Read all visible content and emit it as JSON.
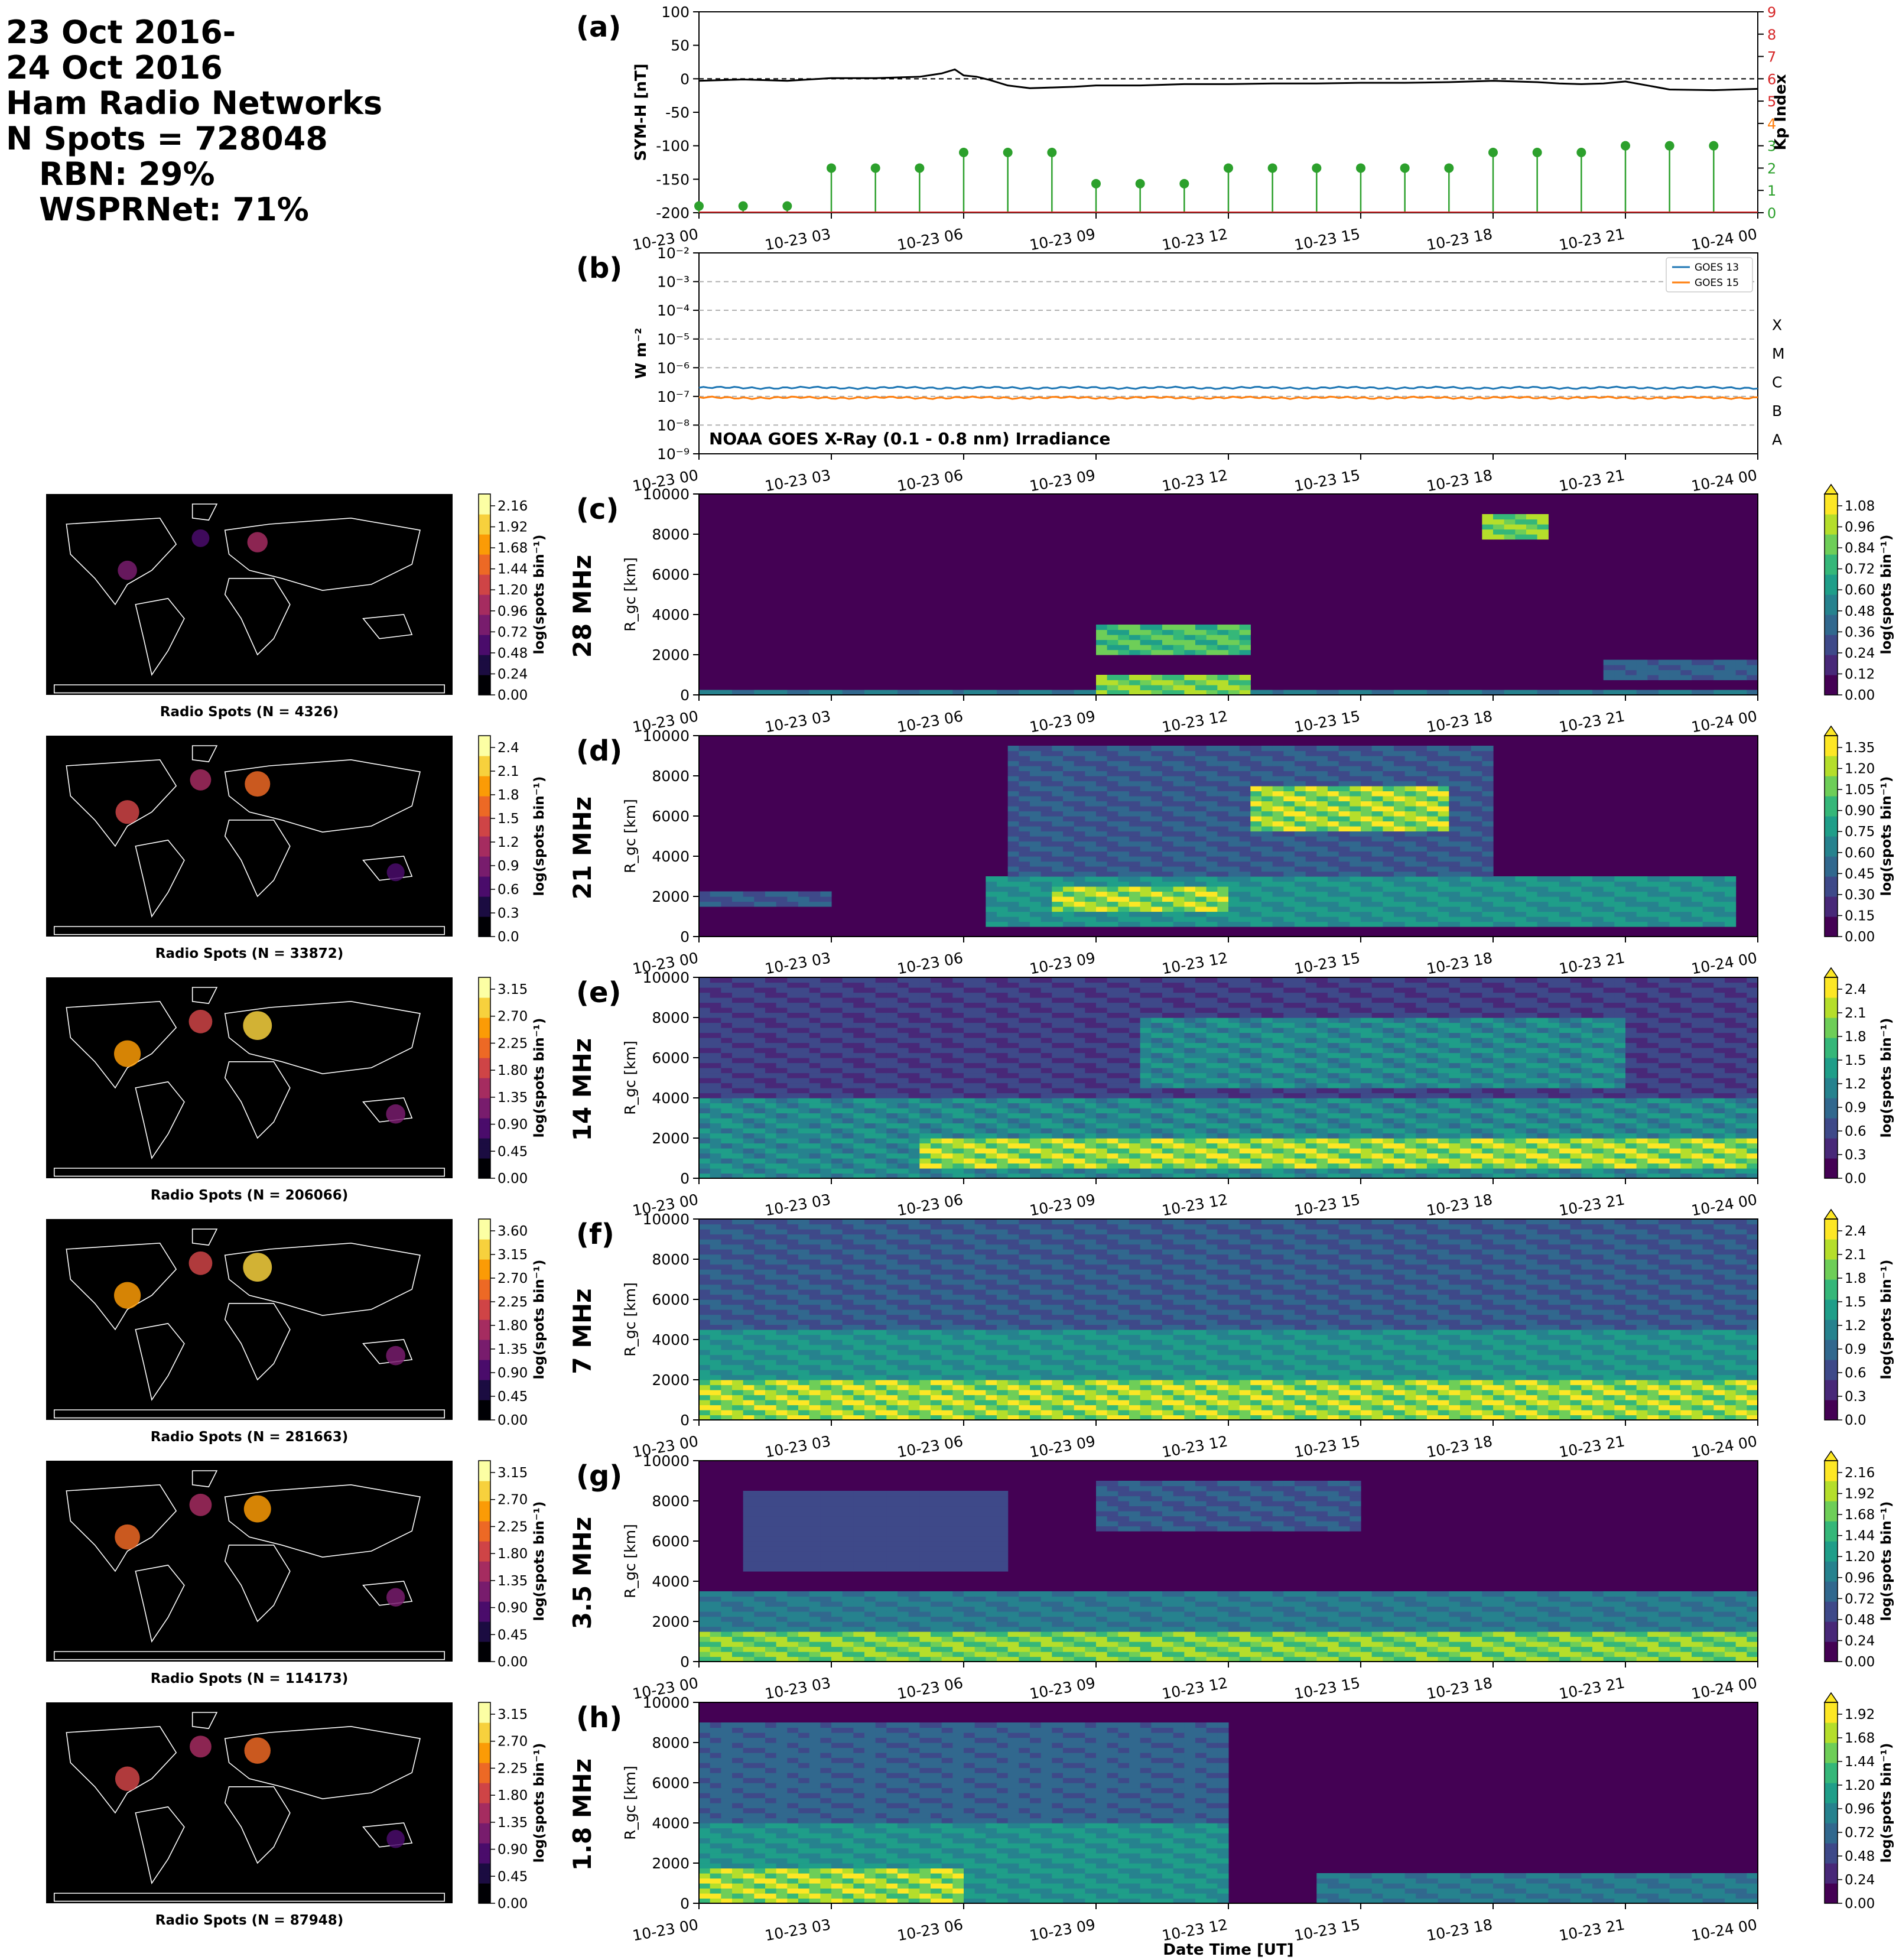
{
  "header": {
    "line1": "23 Oct 2016-",
    "line2": "24 Oct 2016",
    "line3": "Ham Radio Networks",
    "line4": "N Spots = 728048",
    "line5": "RBN: 29%",
    "line6": "WSPRNet: 71%"
  },
  "time_ticks": [
    "10-23 00",
    "10-23 03",
    "10-23 06",
    "10-23 09",
    "10-23 12",
    "10-23 15",
    "10-23 18",
    "10-23 21",
    "10-24 00"
  ],
  "xlabel_bottom": "Date Time [UT]",
  "colors": {
    "symh_line": "#000000",
    "kp_stem": "#2ca02c",
    "goes13": "#1f77b4",
    "goes15": "#ff7f0e",
    "viridis_low": "#440154",
    "viridis_high": "#fde725"
  },
  "chart_data": [
    {
      "id": "a",
      "panel_label": "(a)",
      "type": "line",
      "ylabel": "SYM-H [nT]",
      "ylabel_right": "Kp Index",
      "ylim": [
        -200,
        100
      ],
      "yticks": [
        100,
        50,
        0,
        -50,
        -100,
        -150,
        -200
      ],
      "ylim_right": [
        0,
        9
      ],
      "yticks_right": [
        9,
        8,
        7,
        6,
        5,
        4,
        3,
        2,
        1,
        0
      ],
      "symh": {
        "x_hours": [
          0,
          1,
          2,
          3,
          4,
          5,
          5.5,
          5.8,
          6.0,
          6.3,
          6.6,
          7,
          7.5,
          8,
          8.5,
          9,
          10,
          11,
          12,
          13,
          14,
          15,
          16,
          17,
          18,
          19,
          19.5,
          20,
          20.5,
          21,
          21.5,
          22,
          23,
          24
        ],
        "y": [
          -3,
          -1,
          -3,
          1,
          1,
          3,
          8,
          14,
          5,
          3,
          -2,
          -10,
          -14,
          -13,
          -12,
          -10,
          -10,
          -8,
          -8,
          -7,
          -7,
          -6,
          -6,
          -5,
          -3,
          -5,
          -7,
          -8,
          -7,
          -4,
          -10,
          -16,
          -17,
          -15
        ]
      },
      "kp": {
        "x_hours": [
          0,
          1,
          2,
          3,
          4,
          5,
          6,
          7,
          8,
          9,
          10,
          11,
          12,
          13,
          14,
          15,
          16,
          17,
          18,
          19,
          20,
          21,
          22,
          23
        ],
        "y": [
          0.3,
          0.3,
          0.3,
          2,
          2,
          2,
          2.7,
          2.7,
          2.7,
          1.3,
          1.3,
          1.3,
          2,
          2,
          2,
          2,
          2,
          2,
          2.7,
          2.7,
          2.7,
          3,
          3,
          3
        ]
      }
    },
    {
      "id": "b",
      "panel_label": "(b)",
      "type": "line",
      "ylabel": "W m⁻²",
      "yscale": "log",
      "ylim": [
        1e-09,
        0.01
      ],
      "ytick_labels": [
        "10⁻²",
        "10⁻³",
        "10⁻⁴",
        "10⁻⁵",
        "10⁻⁶",
        "10⁻⁷",
        "10⁻⁸",
        "10⁻⁹"
      ],
      "flare_classes": [
        "X",
        "M",
        "C",
        "B",
        "A"
      ],
      "annotation": "NOAA GOES X-Ray (0.1 - 0.8 nm) Irradiance",
      "series": [
        {
          "name": "GOES 13",
          "level_wm2": 2e-07
        },
        {
          "name": "GOES 15",
          "level_wm2": 9e-08
        }
      ]
    },
    {
      "id": "c",
      "panel_label": "(c)",
      "type": "heatmap",
      "band": "28 MHz",
      "ylabel": "R_gc [km]",
      "ylim": [
        0,
        10000
      ],
      "yticks": [
        0,
        2000,
        4000,
        6000,
        8000,
        10000
      ],
      "cbar_label": "log(spots bin⁻¹)",
      "cbar_ticks": [
        "0.00",
        "0.12",
        "0.24",
        "0.36",
        "0.48",
        "0.60",
        "0.72",
        "0.84",
        "0.96",
        "1.08"
      ],
      "map_title": "Radio Spots (N = 4326)",
      "map_cbar_ticks": [
        "0.00",
        "0.24",
        "0.48",
        "0.72",
        "0.96",
        "1.20",
        "1.44",
        "1.68",
        "1.92",
        "2.16"
      ],
      "blobs": [
        {
          "t": [
            9,
            12.5
          ],
          "r": [
            2000,
            3500
          ],
          "v": 0.8
        },
        {
          "t": [
            9,
            12.5
          ],
          "r": [
            0,
            1000
          ],
          "v": 0.9
        },
        {
          "t": [
            17.8,
            19.2
          ],
          "r": [
            7800,
            9000
          ],
          "v": 0.9
        },
        {
          "t": [
            20.5,
            24
          ],
          "r": [
            800,
            1800
          ],
          "v": 0.4
        },
        {
          "t": [
            0,
            24
          ],
          "r": [
            0,
            200
          ],
          "v": 0.5
        }
      ]
    },
    {
      "id": "d",
      "panel_label": "(d)",
      "type": "heatmap",
      "band": "21 MHz",
      "ylabel": "R_gc [km]",
      "ylim": [
        0,
        10000
      ],
      "yticks": [
        0,
        2000,
        4000,
        6000,
        8000,
        10000
      ],
      "cbar_label": "log(spots bin⁻¹)",
      "cbar_ticks": [
        "0.00",
        "0.15",
        "0.30",
        "0.45",
        "0.60",
        "0.75",
        "0.90",
        "1.05",
        "1.20",
        "1.35"
      ],
      "map_title": "Radio Spots (N = 33872)",
      "map_cbar_ticks": [
        "0.0",
        "0.3",
        "0.6",
        "0.9",
        "1.2",
        "1.5",
        "1.8",
        "2.1",
        "2.4"
      ],
      "blobs": [
        {
          "t": [
            6.5,
            23.5
          ],
          "r": [
            500,
            3000
          ],
          "v": 0.6
        },
        {
          "t": [
            8,
            12
          ],
          "r": [
            1200,
            2400
          ],
          "v": 0.95
        },
        {
          "t": [
            12.5,
            17
          ],
          "r": [
            5200,
            7600
          ],
          "v": 0.95
        },
        {
          "t": [
            7,
            18
          ],
          "r": [
            3000,
            9500
          ],
          "v": 0.35
        },
        {
          "t": [
            0,
            3
          ],
          "r": [
            1500,
            2200
          ],
          "v": 0.35
        }
      ]
    },
    {
      "id": "e",
      "panel_label": "(e)",
      "type": "heatmap",
      "band": "14 MHz",
      "ylabel": "R_gc [km]",
      "ylim": [
        0,
        10000
      ],
      "yticks": [
        0,
        2000,
        4000,
        6000,
        8000,
        10000
      ],
      "cbar_label": "log(spots bin⁻¹)",
      "cbar_ticks": [
        "0.0",
        "0.3",
        "0.6",
        "0.9",
        "1.2",
        "1.5",
        "1.8",
        "2.1",
        "2.4"
      ],
      "map_title": "Radio Spots (N = 206066)",
      "map_cbar_ticks": [
        "0.00",
        "0.45",
        "0.90",
        "1.35",
        "1.80",
        "2.25",
        "2.70",
        "3.15"
      ],
      "blobs": [
        {
          "t": [
            0,
            24
          ],
          "r": [
            0,
            4000
          ],
          "v": 0.55
        },
        {
          "t": [
            5,
            24
          ],
          "r": [
            500,
            2000
          ],
          "v": 0.95
        },
        {
          "t": [
            10,
            21
          ],
          "r": [
            4500,
            8000
          ],
          "v": 0.55
        },
        {
          "t": [
            0,
            24
          ],
          "r": [
            4000,
            10000
          ],
          "v": 0.25
        }
      ]
    },
    {
      "id": "f",
      "panel_label": "(f)",
      "type": "heatmap",
      "band": "7 MHz",
      "ylabel": "R_gc [km]",
      "ylim": [
        0,
        10000
      ],
      "yticks": [
        0,
        2000,
        4000,
        6000,
        8000,
        10000
      ],
      "cbar_label": "log(spots bin⁻¹)",
      "cbar_ticks": [
        "0.0",
        "0.3",
        "0.6",
        "0.9",
        "1.2",
        "1.5",
        "1.8",
        "2.1",
        "2.4"
      ],
      "map_title": "Radio Spots (N = 281663)",
      "map_cbar_ticks": [
        "0.00",
        "0.45",
        "0.90",
        "1.35",
        "1.80",
        "2.25",
        "2.70",
        "3.15",
        "3.60"
      ],
      "blobs": [
        {
          "t": [
            0,
            24
          ],
          "r": [
            0,
            2000
          ],
          "v": 0.95
        },
        {
          "t": [
            0,
            24
          ],
          "r": [
            2000,
            4500
          ],
          "v": 0.6
        },
        {
          "t": [
            0,
            24
          ],
          "r": [
            4500,
            10000
          ],
          "v": 0.35
        }
      ]
    },
    {
      "id": "g",
      "panel_label": "(g)",
      "type": "heatmap",
      "band": "3.5 MHz",
      "ylabel": "R_gc [km]",
      "ylim": [
        0,
        10000
      ],
      "yticks": [
        0,
        2000,
        4000,
        6000,
        8000,
        10000
      ],
      "cbar_label": "log(spots bin⁻¹)",
      "cbar_ticks": [
        "0.00",
        "0.24",
        "0.48",
        "0.72",
        "0.96",
        "1.20",
        "1.44",
        "1.68",
        "1.92",
        "2.16"
      ],
      "map_title": "Radio Spots (N = 114173)",
      "map_cbar_ticks": [
        "0.00",
        "0.45",
        "0.90",
        "1.35",
        "1.80",
        "2.25",
        "2.70",
        "3.15"
      ],
      "blobs": [
        {
          "t": [
            0,
            24
          ],
          "r": [
            0,
            1500
          ],
          "v": 0.9
        },
        {
          "t": [
            0,
            24
          ],
          "r": [
            1500,
            3500
          ],
          "v": 0.5
        },
        {
          "t": [
            9,
            15
          ],
          "r": [
            6500,
            9000
          ],
          "v": 0.35
        },
        {
          "t": [
            1,
            7
          ],
          "r": [
            4500,
            8500
          ],
          "v": 0.3
        }
      ]
    },
    {
      "id": "h",
      "panel_label": "(h)",
      "type": "heatmap",
      "band": "1.8 MHz",
      "ylabel": "R_gc [km]",
      "ylim": [
        0,
        10000
      ],
      "yticks": [
        0,
        2000,
        4000,
        6000,
        8000,
        10000
      ],
      "cbar_label": "log(spots bin⁻¹)",
      "cbar_ticks": [
        "0.00",
        "0.24",
        "0.48",
        "0.72",
        "0.96",
        "1.20",
        "1.44",
        "1.68",
        "1.92"
      ],
      "map_title": "Radio Spots (N = 87948)",
      "map_cbar_ticks": [
        "0.00",
        "0.45",
        "0.90",
        "1.35",
        "1.80",
        "2.25",
        "2.70",
        "3.15"
      ],
      "blobs": [
        {
          "t": [
            0,
            6
          ],
          "r": [
            0,
            1800
          ],
          "v": 0.95
        },
        {
          "t": [
            0,
            12
          ],
          "r": [
            0,
            4000
          ],
          "v": 0.6
        },
        {
          "t": [
            0,
            12
          ],
          "r": [
            4000,
            9000
          ],
          "v": 0.4
        },
        {
          "t": [
            14,
            24
          ],
          "r": [
            0,
            1500
          ],
          "v": 0.5
        }
      ]
    }
  ]
}
